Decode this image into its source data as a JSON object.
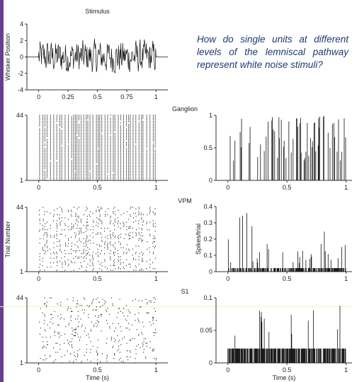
{
  "colors": {
    "accent_bar": "#6a3d8f",
    "highlight_line": "#f3f0c8",
    "question_text": "#1f3b6e",
    "ink": "#111111"
  },
  "question": "How do single units at different levels of the lemniscal pathway represent white noise stimuli?",
  "chart_data": [
    {
      "type": "line",
      "title": "Stimulus",
      "ylabel": "Whisker Position",
      "xlabel": "",
      "xlim": [
        -0.1,
        1.1
      ],
      "ylim": [
        -4,
        4
      ],
      "xticks": [
        "0",
        "0.25",
        "0.5",
        "0.75",
        "1"
      ],
      "yticks": [
        "4",
        "2",
        "0",
        "-2",
        "-4"
      ],
      "description_series": "white noise whisker deflection between t=0 and t=1 s, amplitude roughly within -3 to +4"
    },
    {
      "type": "scatter",
      "title": "Ganglion",
      "ylabel": "",
      "xlabel": "",
      "xlim": [
        -0.1,
        1.1
      ],
      "ylim": [
        1,
        44
      ],
      "xticks": [
        "0",
        "0.5",
        "1"
      ],
      "yticks": [
        "44",
        "1"
      ]
    },
    {
      "type": "bar",
      "title": "",
      "ylabel": "",
      "xlabel": "",
      "xlim": [
        -0.1,
        1.05
      ],
      "ylim": [
        0,
        1
      ],
      "xticks": [
        "0",
        "0.5",
        "1"
      ],
      "yticks": [
        "1",
        "0.5",
        "0"
      ]
    },
    {
      "type": "scatter",
      "title": "VPM",
      "ylabel": "Trial Number",
      "xlabel": "",
      "xlim": [
        -0.1,
        1.1
      ],
      "ylim": [
        1,
        44
      ],
      "xticks": [
        "0",
        "0.5",
        "1"
      ],
      "yticks": [
        "44",
        "1"
      ]
    },
    {
      "type": "bar",
      "title": "",
      "ylabel": "Spikes/trial",
      "xlabel": "",
      "xlim": [
        -0.1,
        1.05
      ],
      "ylim": [
        0,
        0.4
      ],
      "xticks": [
        "0",
        "0.5",
        "1"
      ],
      "yticks": [
        "0.4",
        "0.3",
        "0.2",
        "0.1",
        "0"
      ]
    },
    {
      "type": "scatter",
      "title": "S1",
      "ylabel": "",
      "xlabel": "Time (s)",
      "xlim": [
        -0.1,
        1.1
      ],
      "ylim": [
        1,
        44
      ],
      "xticks": [
        "0",
        "0.5",
        "1"
      ],
      "yticks": [
        "44",
        "1"
      ]
    },
    {
      "type": "bar",
      "title": "",
      "ylabel": "",
      "xlabel": "Time (s)",
      "xlim": [
        -0.1,
        1.05
      ],
      "ylim": [
        0,
        0.1
      ],
      "xticks": [
        "0",
        "0.5",
        "1"
      ],
      "yticks": [
        "0.1",
        "0.05",
        "0"
      ]
    }
  ]
}
